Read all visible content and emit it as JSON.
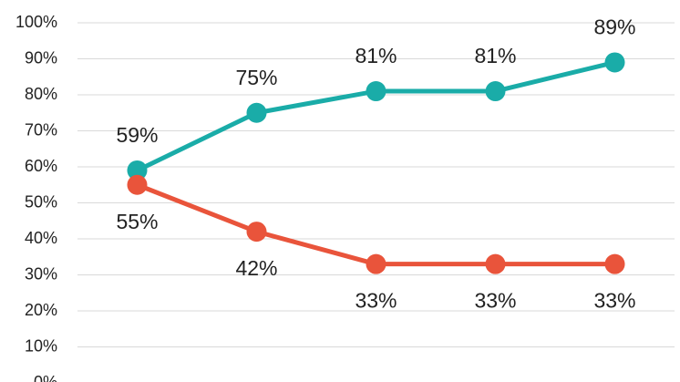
{
  "chart_data": {
    "type": "line",
    "series": [
      {
        "color": "#1aaca8",
        "values": [
          59,
          75,
          81,
          81,
          89
        ],
        "value_labels": [
          "59%",
          "75%",
          "81%",
          "81%",
          "89%"
        ],
        "label_position": "above"
      },
      {
        "color": "#e9543b",
        "values": [
          55,
          42,
          33,
          33,
          33
        ],
        "value_labels": [
          "55%",
          "42%",
          "33%",
          "33%",
          "33%"
        ],
        "label_position": "below"
      }
    ],
    "ylim": [
      0,
      100
    ],
    "yticks": [
      {
        "value": 0,
        "label": "0%"
      },
      {
        "value": 10,
        "label": "10%"
      },
      {
        "value": 20,
        "label": "20%"
      },
      {
        "value": 30,
        "label": "30%"
      },
      {
        "value": 40,
        "label": "40%"
      },
      {
        "value": 50,
        "label": "50%"
      },
      {
        "value": 60,
        "label": "60%"
      },
      {
        "value": 70,
        "label": "70%"
      },
      {
        "value": 80,
        "label": "80%"
      },
      {
        "value": 90,
        "label": "90%"
      },
      {
        "value": 100,
        "label": "100%"
      }
    ],
    "grid": true
  }
}
